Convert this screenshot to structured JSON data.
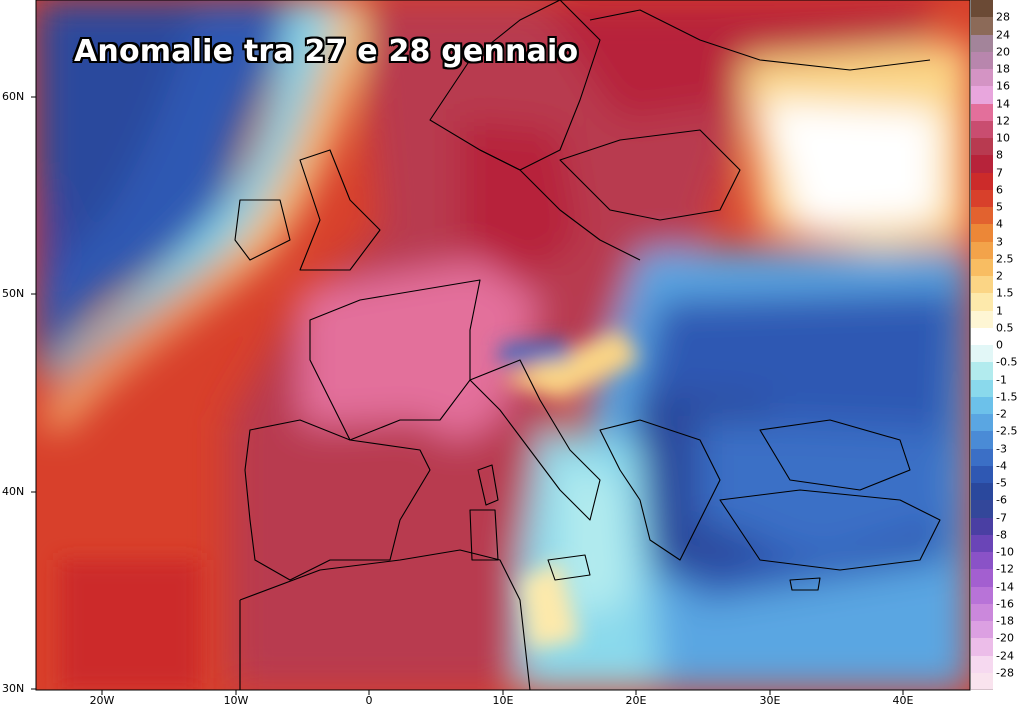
{
  "title": "Anomalie tra 27 e 28 gennaio",
  "lat_labels": [
    "60N",
    "50N",
    "40N",
    "30N"
  ],
  "lon_labels": [
    "20W",
    "10W",
    "0",
    "10E",
    "20E",
    "30E",
    "40E"
  ],
  "legend": {
    "labels": [
      "28",
      "24",
      "20",
      "18",
      "16",
      "14",
      "12",
      "10",
      "8",
      "7",
      "6",
      "5",
      "4",
      "3",
      "2.5",
      "2",
      "1.5",
      "1",
      "0.5",
      "0",
      "-0.5",
      "-1",
      "-1.5",
      "-2",
      "-2.5",
      "-3",
      "-4",
      "-5",
      "-6",
      "-7",
      "-8",
      "-10",
      "-12",
      "-14",
      "-16",
      "-18",
      "-20",
      "-24",
      "-28"
    ],
    "colors": [
      "#6b4a35",
      "#8c6a58",
      "#a3849a",
      "#b886ad",
      "#d494c4",
      "#e8a6dd",
      "#e36f9b",
      "#c94d70",
      "#b83a50",
      "#b7233a",
      "#cc2b2a",
      "#d8402b",
      "#e2622f",
      "#ec8737",
      "#f3a34a",
      "#f8bd62",
      "#fbd585",
      "#fde9ab",
      "#fef6d4",
      "#ffffff",
      "#e2f7f7",
      "#b2ebee",
      "#8ad9ec",
      "#6cc1ea",
      "#5aa6e2",
      "#4a8bd6",
      "#3b6fc6",
      "#2f58b3",
      "#2a489d",
      "#33479a",
      "#4a3fa3",
      "#6a45b7",
      "#8a52c7",
      "#a35fd0",
      "#b873d8",
      "#cb88dc",
      "#dca0e2",
      "#ecbde9",
      "#f6d9f0"
    ]
  }
}
